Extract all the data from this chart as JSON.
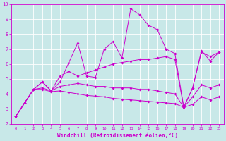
{
  "xlabel": "Windchill (Refroidissement éolien,°C)",
  "background_color": "#c8e8e8",
  "line_color": "#cc00cc",
  "x_data": [
    0,
    1,
    2,
    3,
    4,
    5,
    6,
    7,
    8,
    9,
    10,
    11,
    12,
    13,
    14,
    15,
    16,
    17,
    18,
    19,
    20,
    21,
    22,
    23
  ],
  "series1": [
    2.5,
    3.4,
    4.3,
    4.8,
    4.2,
    4.8,
    6.1,
    7.4,
    5.2,
    5.1,
    7.0,
    7.5,
    6.4,
    9.7,
    9.3,
    8.6,
    8.3,
    7.0,
    6.7,
    3.1,
    4.4,
    6.9,
    6.2,
    6.8
  ],
  "series2": [
    2.5,
    3.4,
    4.3,
    4.8,
    4.2,
    5.2,
    5.5,
    5.2,
    5.4,
    5.6,
    5.8,
    6.0,
    6.1,
    6.2,
    6.3,
    6.3,
    6.4,
    6.5,
    6.3,
    3.1,
    4.4,
    6.8,
    6.5,
    6.8
  ],
  "series3": [
    2.5,
    3.4,
    4.3,
    4.4,
    4.2,
    4.5,
    4.6,
    4.7,
    4.6,
    4.5,
    4.5,
    4.4,
    4.4,
    4.4,
    4.3,
    4.3,
    4.2,
    4.1,
    4.0,
    3.1,
    3.8,
    4.6,
    4.4,
    4.6
  ],
  "series4": [
    2.5,
    3.4,
    4.3,
    4.3,
    4.15,
    4.2,
    4.1,
    4.0,
    3.9,
    3.85,
    3.8,
    3.7,
    3.65,
    3.6,
    3.55,
    3.5,
    3.45,
    3.4,
    3.35,
    3.1,
    3.3,
    3.8,
    3.6,
    3.8
  ],
  "ylim": [
    2,
    10
  ],
  "xlim_min": -0.5,
  "xlim_max": 23.5,
  "yticks": [
    2,
    3,
    4,
    5,
    6,
    7,
    8,
    9,
    10
  ],
  "xticks": [
    0,
    1,
    2,
    3,
    4,
    5,
    6,
    7,
    8,
    9,
    10,
    11,
    12,
    13,
    14,
    15,
    16,
    17,
    18,
    19,
    20,
    21,
    22,
    23
  ]
}
